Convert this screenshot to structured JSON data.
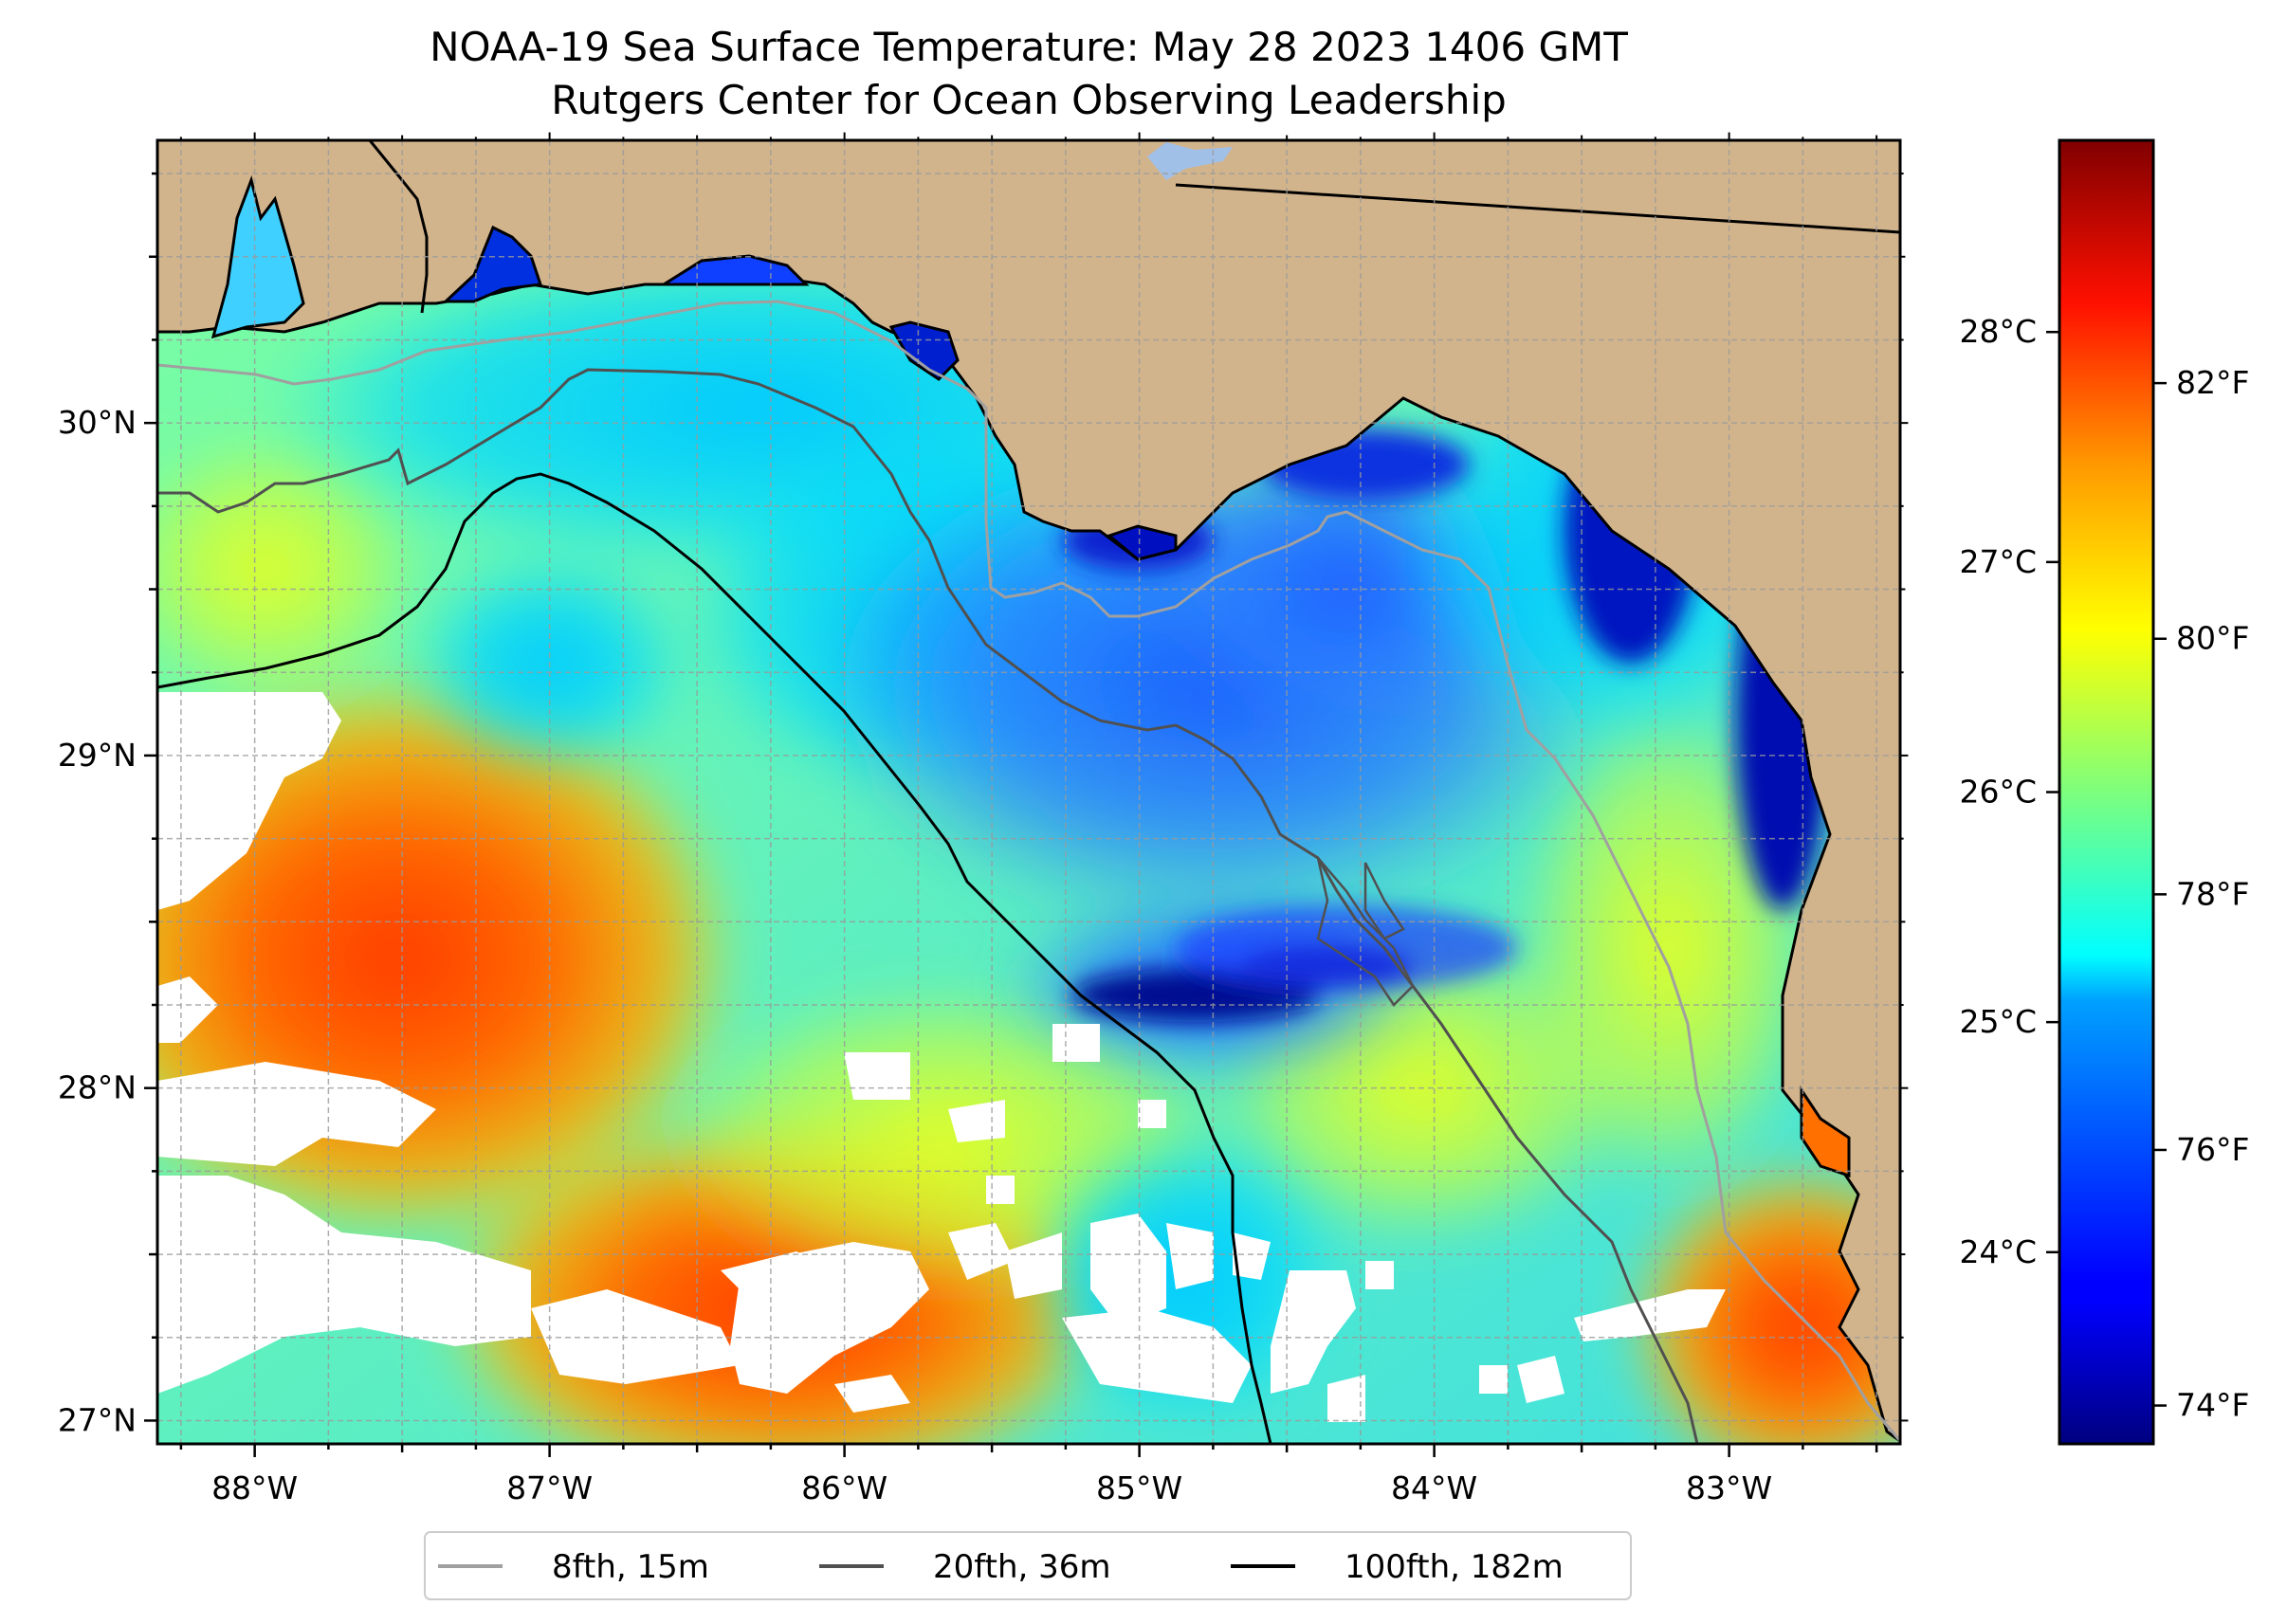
{
  "title": "NOAA-19 Sea Surface Temperature: May 28 2023 1406 GMT",
  "subtitle": "Rutgers Center for Ocean Observing Leadership",
  "map": {
    "lon_range": [
      -88.33,
      -82.42
    ],
    "lat_range": [
      26.93,
      30.85
    ],
    "land_color": "#d2b48c",
    "cloud_color": "#ffffff",
    "lon_ticks": [
      {
        "value": -88,
        "label": "88°W"
      },
      {
        "value": -87,
        "label": "87°W"
      },
      {
        "value": -86,
        "label": "86°W"
      },
      {
        "value": -85,
        "label": "85°W"
      },
      {
        "value": -84,
        "label": "84°W"
      },
      {
        "value": -83,
        "label": "83°W"
      }
    ],
    "lat_ticks": [
      {
        "value": 27,
        "label": "27°N"
      },
      {
        "value": 28,
        "label": "28°N"
      },
      {
        "value": 29,
        "label": "29°N"
      },
      {
        "value": 30,
        "label": "30°N"
      }
    ],
    "grid": true
  },
  "colorbar": {
    "colormap": "jet",
    "range_f": [
      73.7,
      83.9
    ],
    "celsius_ticks": [
      {
        "value": 24,
        "label": "24°C"
      },
      {
        "value": 25,
        "label": "25°C"
      },
      {
        "value": 26,
        "label": "26°C"
      },
      {
        "value": 27,
        "label": "27°C"
      },
      {
        "value": 28,
        "label": "28°C"
      }
    ],
    "fahrenheit_ticks": [
      {
        "value": 74,
        "label": "74°F"
      },
      {
        "value": 76,
        "label": "76°F"
      },
      {
        "value": 78,
        "label": "78°F"
      },
      {
        "value": 80,
        "label": "80°F"
      },
      {
        "value": 82,
        "label": "82°F"
      }
    ]
  },
  "legend": {
    "placement": "bottom-center",
    "items": [
      {
        "label": "8fth, 15m",
        "color": "#a0a0a0"
      },
      {
        "label": "20fth, 36m",
        "color": "#505050"
      },
      {
        "label": "100fth, 182m",
        "color": "#000000"
      }
    ]
  }
}
